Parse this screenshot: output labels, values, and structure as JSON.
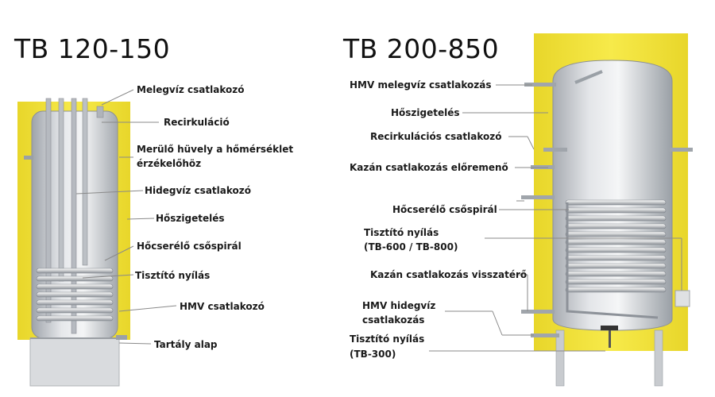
{
  "left": {
    "title": "TB 120-150",
    "labels": [
      "Melegvíz csatlakozó",
      "Recirkuláció",
      "Merülő hüvely a hőmérséklet",
      "érzékelőhöz",
      "Hidegvíz csatlakozó",
      "Hőszigetelés",
      "Hőcserélő csőspirál",
      "Tisztító nyílás",
      "HMV csatlakozó",
      "Tartály alap"
    ]
  },
  "right": {
    "title": "TB 200-850",
    "labels": [
      "HMV melegvíz csatlakozás",
      "Hőszigetelés",
      "Recirkulációs csatlakozó",
      "Kazán csatlakozás előremenő",
      "Hőcserélő csőspirál",
      "Tisztító nyílás",
      "(TB-600 / TB-800)",
      "Kazán csatlakozás visszatérő",
      "HMV hidegvíz",
      "csatlakozás",
      "Tisztító nyílás",
      "(TB-300)"
    ]
  },
  "colors": {
    "insulation": "#f2e23a",
    "tank": "#c9ccd1",
    "leader": "#8a8a8a"
  }
}
